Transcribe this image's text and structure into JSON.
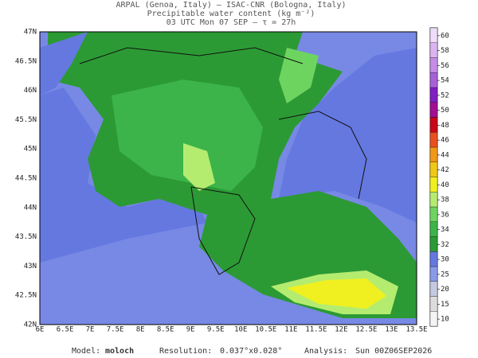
{
  "header": {
    "line1": "ARPAL (Genoa, Italy)  —  ISAC-CNR (Bologna, Italy)",
    "line2": "Precipitable water content (kg m⁻²)",
    "line3": "03 UTC Mon 07 SEP  —  τ = 27h"
  },
  "lat_labels": [
    "47N",
    "46.5N",
    "46N",
    "45.5N",
    "45N",
    "44.5N",
    "44N",
    "43.5N",
    "43N",
    "42.5N",
    "42N"
  ],
  "lon_labels": [
    "6E",
    "6.5E",
    "7E",
    "7.5E",
    "8E",
    "8.5E",
    "9E",
    "9.5E",
    "10E",
    "10.5E",
    "11E",
    "11.5E",
    "12E",
    "12.5E",
    "13E",
    "13.5E"
  ],
  "colorbar": {
    "levels": [
      10,
      15,
      20,
      25,
      30,
      32,
      34,
      36,
      38,
      40,
      42,
      44,
      46,
      48,
      50,
      52,
      54,
      56,
      58,
      60
    ],
    "colors": [
      "#f4f4f4",
      "#dcdcdc",
      "#c4c8e0",
      "#8a9ae8",
      "#6478e0",
      "#2c9a34",
      "#3cb44a",
      "#6ed460",
      "#b4ec70",
      "#f0f020",
      "#f0c818",
      "#f09818",
      "#e85020",
      "#c80818",
      "#a01090",
      "#8020c0",
      "#a860d8",
      "#c48ce4",
      "#dcb4f0",
      "#eedcf8"
    ]
  },
  "footer": {
    "model_label": "Model:",
    "model": "moloch",
    "resolution_label": "Resolution:",
    "resolution": "0.037°x0.028°",
    "analysis_label": "Analysis:",
    "analysis": "Sun 00Z06SEP2026"
  }
}
